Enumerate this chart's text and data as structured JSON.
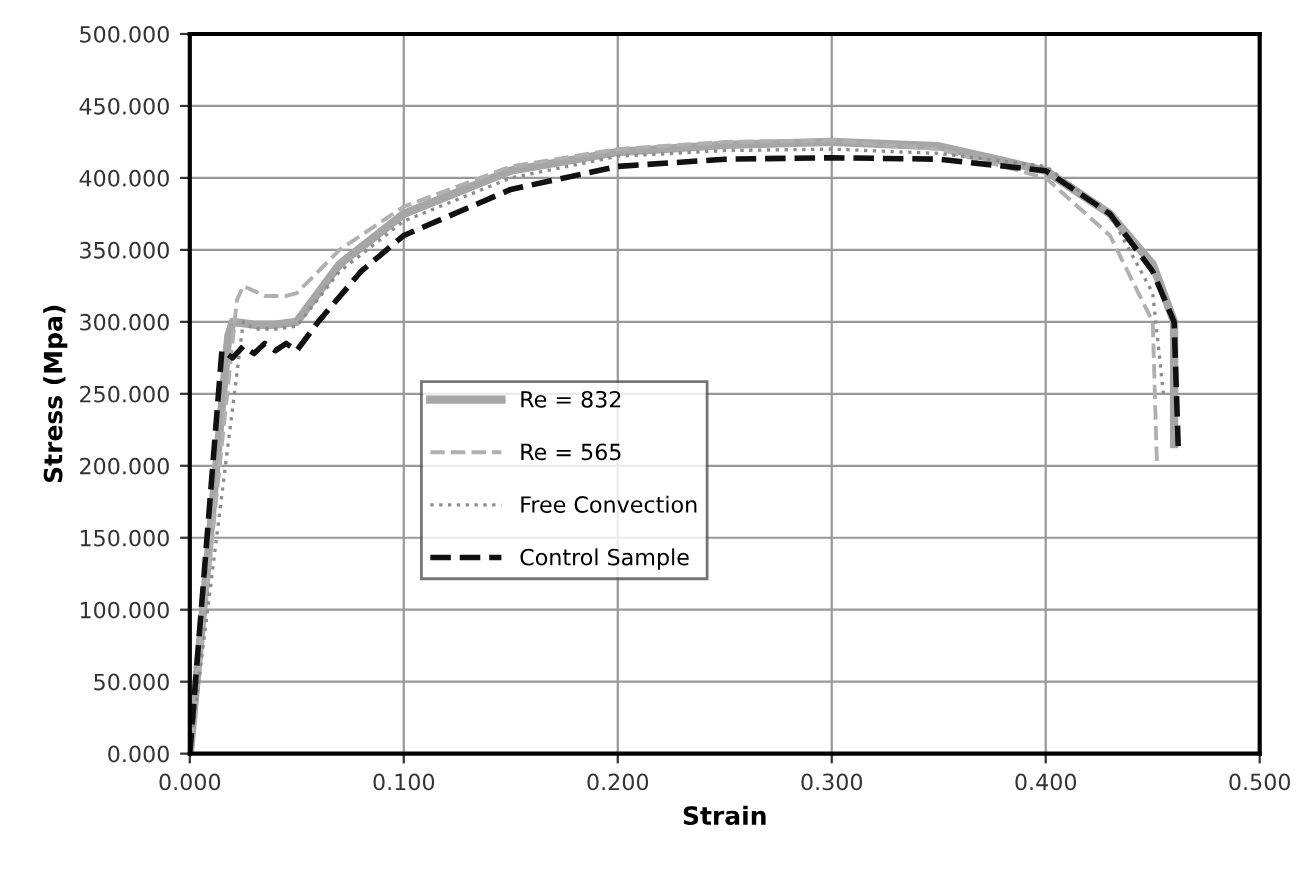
{
  "chart_data": {
    "type": "line",
    "xlabel": "Strain",
    "ylabel": "Stress (Mpa)",
    "xlim": [
      0,
      0.5
    ],
    "ylim": [
      0,
      500
    ],
    "xticks": [
      {
        "value": 0,
        "label": "0.000"
      },
      {
        "value": 0.1,
        "label": "0.100"
      },
      {
        "value": 0.2,
        "label": "0.200"
      },
      {
        "value": 0.3,
        "label": "0.300"
      },
      {
        "value": 0.4,
        "label": "0.400"
      },
      {
        "value": 0.5,
        "label": "0.500"
      }
    ],
    "yticks": [
      {
        "value": 0,
        "label": "0.000"
      },
      {
        "value": 50,
        "label": "50.000"
      },
      {
        "value": 100,
        "label": "100.000"
      },
      {
        "value": 150,
        "label": "150.000"
      },
      {
        "value": 200,
        "label": "200.000"
      },
      {
        "value": 250,
        "label": "250.000"
      },
      {
        "value": 300,
        "label": "300.000"
      },
      {
        "value": 350,
        "label": "350.000"
      },
      {
        "value": 400,
        "label": "400.000"
      },
      {
        "value": 450,
        "label": "450.000"
      },
      {
        "value": 500,
        "label": "500.000"
      }
    ],
    "grid": true,
    "legend": "center",
    "marker": "none",
    "series": [
      {
        "name": "Re = 832",
        "color": "#a6a6a6",
        "line_style": "solid",
        "x": [
          0,
          0.018,
          0.02,
          0.03,
          0.04,
          0.05,
          0.07,
          0.1,
          0.15,
          0.2,
          0.25,
          0.3,
          0.35,
          0.4,
          0.43,
          0.45,
          0.46,
          0.46
        ],
        "values": [
          0,
          290,
          300,
          298,
          298,
          300,
          340,
          375,
          405,
          418,
          423,
          425,
          422,
          405,
          375,
          340,
          300,
          215
        ]
      },
      {
        "name": "Re = 565",
        "color": "#b0b0b0",
        "line_style": "dashed",
        "x": [
          0,
          0.022,
          0.025,
          0.035,
          0.045,
          0.05,
          0.07,
          0.1,
          0.15,
          0.2,
          0.25,
          0.3,
          0.35,
          0.4,
          0.43,
          0.45,
          0.452
        ],
        "values": [
          0,
          315,
          325,
          318,
          318,
          320,
          350,
          380,
          408,
          420,
          425,
          426,
          420,
          400,
          360,
          300,
          200
        ]
      },
      {
        "name": "Free Convection",
        "color": "#8c8c8c",
        "line_style": "dotted",
        "x": [
          0,
          0.025,
          0.03,
          0.04,
          0.05,
          0.07,
          0.1,
          0.15,
          0.2,
          0.25,
          0.3,
          0.35,
          0.4,
          0.43,
          0.45,
          0.455
        ],
        "values": [
          0,
          300,
          295,
          295,
          297,
          335,
          370,
          400,
          415,
          419,
          420,
          417,
          408,
          375,
          320,
          250
        ]
      },
      {
        "name": "Control Sample",
        "color": "#111111",
        "line_style": "dashed",
        "x": [
          0,
          0.015,
          0.02,
          0.025,
          0.03,
          0.035,
          0.04,
          0.045,
          0.05,
          0.06,
          0.08,
          0.1,
          0.15,
          0.2,
          0.25,
          0.3,
          0.35,
          0.4,
          0.43,
          0.45,
          0.46,
          0.462
        ],
        "values": [
          0,
          280,
          275,
          283,
          278,
          285,
          280,
          285,
          280,
          300,
          335,
          360,
          392,
          408,
          413,
          414,
          413,
          405,
          375,
          335,
          300,
          210
        ]
      }
    ]
  }
}
